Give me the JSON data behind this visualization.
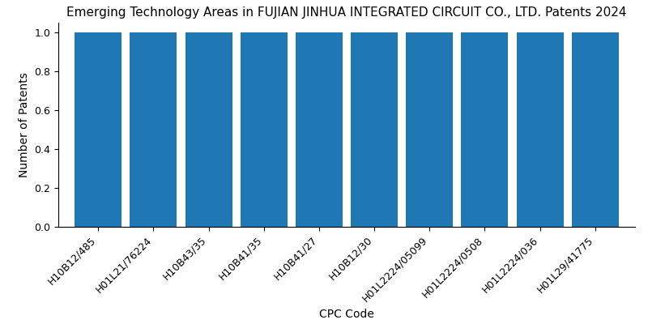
{
  "title": "Emerging Technology Areas in FUJIAN JINHUA INTEGRATED CIRCUIT CO., LTD. Patents 2024",
  "xlabel": "CPC Code",
  "ylabel": "Number of Patents",
  "categories": [
    "H10B12/485",
    "H01L21/76224",
    "H10B43/35",
    "H10B41/35",
    "H10B41/27",
    "H10B12/30",
    "H01L2224/05099",
    "H01L2224/0508",
    "H01L2224/036",
    "H01L29/41775"
  ],
  "values": [
    1,
    1,
    1,
    1,
    1,
    1,
    1,
    1,
    1,
    1
  ],
  "bar_color": "#1f77b4",
  "ylim": [
    0,
    1.05
  ],
  "yticks": [
    0.0,
    0.2,
    0.4,
    0.6,
    0.8,
    1.0
  ],
  "title_fontsize": 11,
  "label_fontsize": 10,
  "tick_fontsize": 9,
  "bar_width": 0.85,
  "background_color": "#ffffff"
}
